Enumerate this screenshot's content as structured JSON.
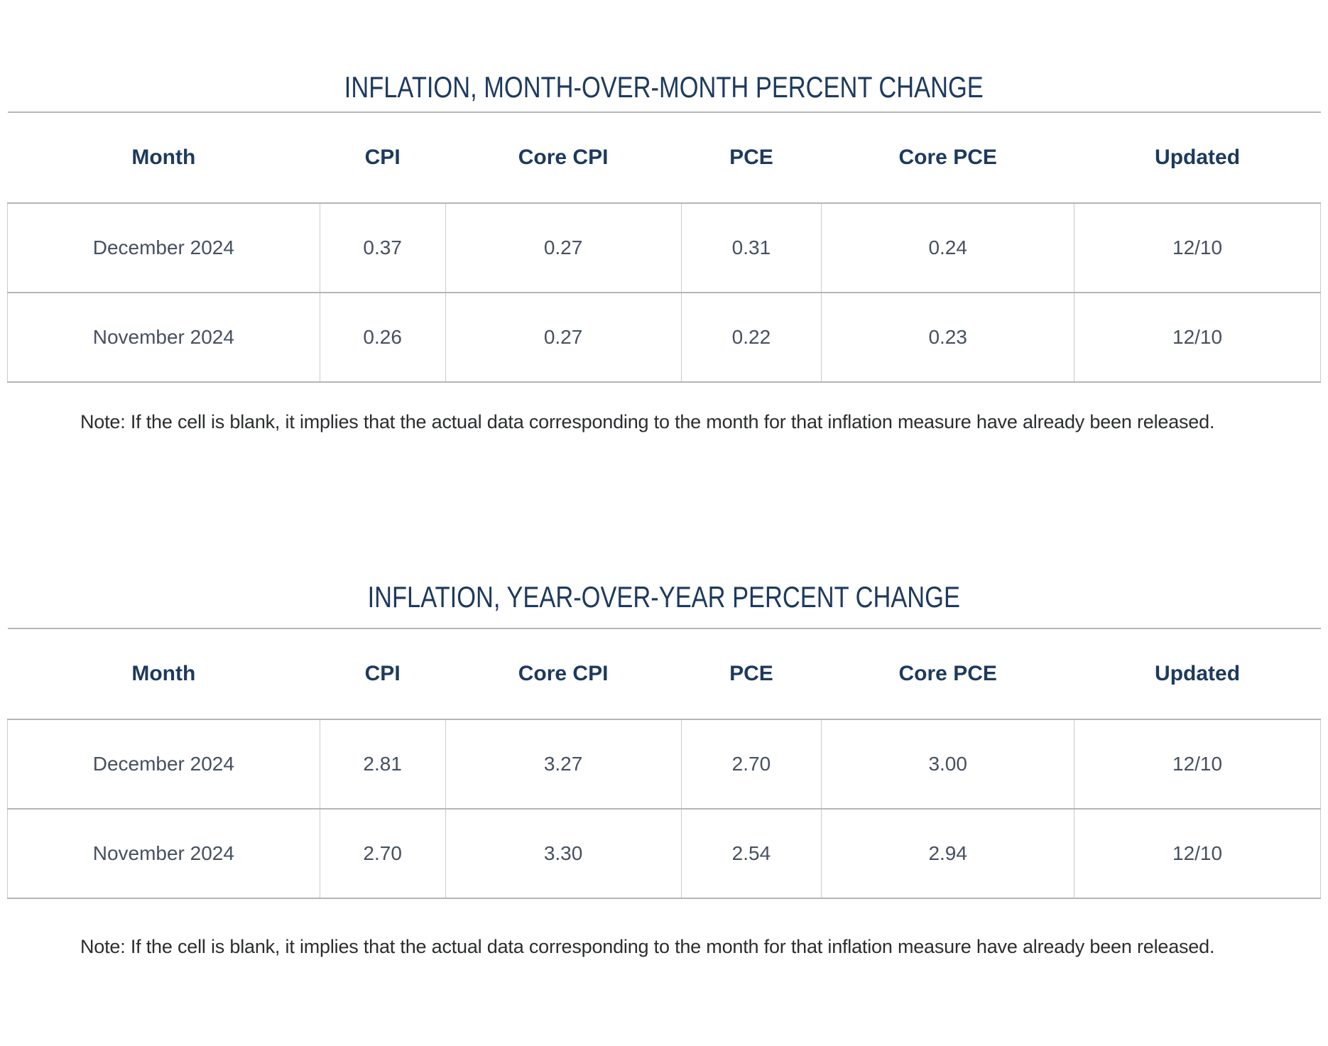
{
  "tables": [
    {
      "title": "INFLATION, MONTH-OVER-MONTH PERCENT CHANGE",
      "columns": [
        "Month",
        "CPI",
        "Core CPI",
        "PCE",
        "Core PCE",
        "Updated"
      ],
      "rows": [
        [
          "December 2024",
          "0.37",
          "0.27",
          "0.31",
          "0.24",
          "12/10"
        ],
        [
          "November 2024",
          "0.26",
          "0.27",
          "0.22",
          "0.23",
          "12/10"
        ]
      ],
      "note": "Note: If the cell is blank, it implies that the actual data corresponding to the month for that inflation measure have already been released."
    },
    {
      "title": "INFLATION, YEAR-OVER-YEAR PERCENT CHANGE",
      "columns": [
        "Month",
        "CPI",
        "Core CPI",
        "PCE",
        "Core PCE",
        "Updated"
      ],
      "rows": [
        [
          "December 2024",
          "2.81",
          "3.27",
          "2.70",
          "3.00",
          "12/10"
        ],
        [
          "November 2024",
          "2.70",
          "3.30",
          "2.54",
          "2.94",
          "12/10"
        ]
      ],
      "note": "Note: If the cell is blank, it implies that the actual data corresponding to the month for that inflation measure have already been released."
    }
  ],
  "colors": {
    "heading_navy": "#1d3a5e",
    "cell_text": "#465060",
    "note_text": "#2b2d2f",
    "rule_gray": "#b3b6b8",
    "divider_gray": "#c9cbcd"
  }
}
